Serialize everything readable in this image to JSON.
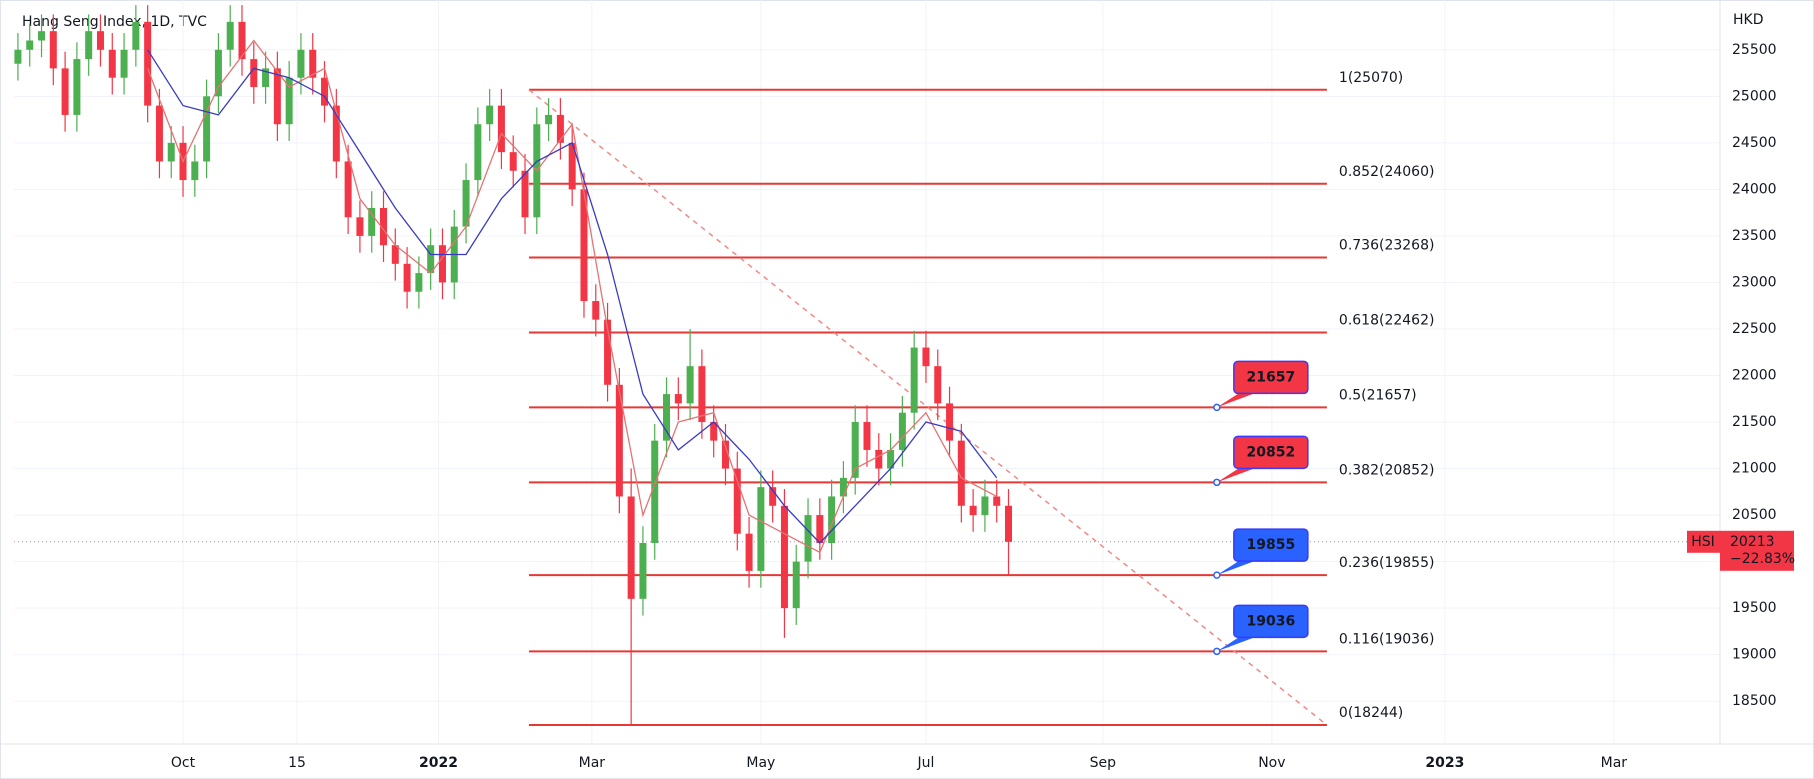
{
  "chart_data": {
    "type": "candlestick",
    "title": "Hang Seng Index, 1D, TVC",
    "currency": "HKD",
    "up_color": "#4caf50",
    "down_color": "#f23645",
    "grid": true,
    "xlim": [
      0,
      434
    ],
    "ylim": [
      18040,
      26035
    ],
    "xticks": [
      {
        "value": 43,
        "label": "Oct"
      },
      {
        "value": 72,
        "label": "15"
      },
      {
        "value": 108,
        "label": "2022"
      },
      {
        "value": 147,
        "label": "Mar"
      },
      {
        "value": 190,
        "label": "May"
      },
      {
        "value": 232,
        "label": "Jul"
      },
      {
        "value": 277,
        "label": "Sep"
      },
      {
        "value": 320,
        "label": "Nov"
      },
      {
        "value": 364,
        "label": "2023"
      },
      {
        "value": 407,
        "label": "Mar"
      }
    ],
    "yticks": [
      18500,
      19000,
      19500,
      20000,
      20500,
      21000,
      21500,
      22000,
      22500,
      23000,
      23500,
      24000,
      24500,
      25000,
      25500
    ],
    "x": [
      1,
      4,
      7,
      10,
      13,
      16,
      19,
      22,
      25,
      28,
      31,
      34,
      37,
      40,
      43,
      46,
      49,
      52,
      55,
      58,
      61,
      64,
      67,
      70,
      73,
      76,
      79,
      82,
      85,
      88,
      91,
      94,
      97,
      100,
      103,
      106,
      109,
      112,
      115,
      118,
      121,
      124,
      127,
      130,
      133,
      136,
      139,
      142,
      145,
      148,
      151,
      154,
      157,
      160,
      163,
      166,
      169,
      172,
      175,
      178,
      181,
      184,
      187,
      190,
      193,
      196,
      199,
      202,
      205,
      208,
      211,
      214,
      217,
      220,
      223,
      226,
      229,
      232,
      235,
      238,
      241,
      244,
      247,
      250,
      253
    ],
    "open": [
      25350,
      25500,
      25600,
      25700,
      25300,
      24800,
      25400,
      25700,
      25500,
      25200,
      25500,
      25800,
      24900,
      24300,
      24500,
      24100,
      24300,
      25000,
      25500,
      25800,
      25400,
      25100,
      25300,
      24700,
      25200,
      25500,
      25200,
      24900,
      24300,
      23700,
      23500,
      23800,
      23400,
      23200,
      22900,
      23100,
      23400,
      23000,
      23600,
      24100,
      24700,
      24900,
      24400,
      24200,
      23700,
      24700,
      24800,
      24500,
      24000,
      22800,
      22600,
      21900,
      20700,
      19600,
      20200,
      21300,
      21800,
      21700,
      22100,
      21500,
      21300,
      21000,
      20300,
      19900,
      20800,
      20600,
      19500,
      20000,
      20500,
      20200,
      20700,
      20900,
      21500,
      21200,
      21000,
      21200,
      21600,
      22300,
      22100,
      21700,
      21300,
      20600,
      20500,
      20700,
      20600
    ],
    "high": [
      25680,
      25780,
      25880,
      25880,
      25480,
      25580,
      25880,
      25880,
      25680,
      25680,
      25980,
      25980,
      25080,
      24680,
      24680,
      24480,
      25180,
      25680,
      25980,
      25980,
      25580,
      25480,
      25480,
      25380,
      25680,
      25680,
      25380,
      25080,
      24480,
      23880,
      23980,
      23980,
      23580,
      23380,
      23280,
      23580,
      23580,
      23780,
      24280,
      24880,
      25080,
      25080,
      24580,
      24380,
      24880,
      24980,
      24980,
      24680,
      24180,
      22980,
      22780,
      22080,
      21000,
      20380,
      21480,
      21980,
      21980,
      22500,
      22280,
      21680,
      21480,
      21180,
      20480,
      20980,
      20980,
      20780,
      20180,
      20680,
      20680,
      20880,
      21080,
      21680,
      21680,
      21380,
      21380,
      21780,
      22480,
      22480,
      22280,
      21880,
      21480,
      20780,
      20880,
      20880,
      20780
    ],
    "low": [
      25170,
      25320,
      25420,
      25120,
      24620,
      24620,
      25220,
      25320,
      25020,
      25020,
      25320,
      24720,
      24120,
      24120,
      23920,
      23920,
      24120,
      24820,
      25320,
      25220,
      24920,
      24920,
      24520,
      24520,
      25020,
      25020,
      24720,
      24120,
      23520,
      23320,
      23320,
      23220,
      23020,
      22720,
      22720,
      22920,
      22820,
      22820,
      23420,
      23920,
      24520,
      24220,
      24020,
      23520,
      23520,
      24520,
      24320,
      23820,
      22620,
      22420,
      21720,
      20520,
      18244,
      19420,
      20020,
      21120,
      21520,
      21520,
      21320,
      21120,
      20820,
      20120,
      19720,
      19720,
      20420,
      19180,
      19320,
      19820,
      20020,
      20020,
      20520,
      20720,
      21020,
      20820,
      20820,
      21020,
      21420,
      21920,
      21520,
      21120,
      20420,
      20320,
      20320,
      20420,
      19860
    ],
    "close": [
      25500,
      25600,
      25700,
      25300,
      24800,
      25400,
      25700,
      25500,
      25200,
      25500,
      25800,
      24900,
      24300,
      24500,
      24100,
      24300,
      25000,
      25500,
      25800,
      25400,
      25100,
      25300,
      24700,
      25200,
      25500,
      25200,
      24900,
      24300,
      23700,
      23500,
      23800,
      23400,
      23200,
      22900,
      23100,
      23400,
      23000,
      23600,
      24100,
      24700,
      24900,
      24400,
      24200,
      23700,
      24700,
      24800,
      24500,
      24000,
      22800,
      22600,
      21900,
      20700,
      19600,
      20200,
      21300,
      21800,
      21700,
      22100,
      21500,
      21300,
      21000,
      20300,
      19900,
      20800,
      20600,
      19500,
      20000,
      20500,
      20200,
      20700,
      20900,
      21500,
      21200,
      21000,
      21200,
      21600,
      22300,
      22100,
      21700,
      21300,
      20600,
      20500,
      20700,
      20600,
      20213
    ],
    "series": [
      {
        "color": "#e57373",
        "x": [
          34,
          43,
          52,
          61,
          70,
          79,
          88,
          97,
          106,
          115,
          124,
          133,
          142,
          151,
          160,
          169,
          178,
          187,
          196,
          205,
          214,
          223,
          232,
          241,
          250
        ],
        "values": [
          25300,
          24300,
          25100,
          25600,
          25100,
          25300,
          23900,
          23400,
          23100,
          23600,
          24600,
          24200,
          24700,
          22500,
          20500,
          21500,
          21600,
          20500,
          20300,
          20100,
          21000,
          21200,
          21600,
          20900,
          20700
        ]
      },
      {
        "color": "#3a3ac4",
        "x": [
          34,
          43,
          52,
          61,
          70,
          79,
          88,
          97,
          106,
          115,
          124,
          133,
          142,
          151,
          160,
          169,
          178,
          187,
          196,
          205,
          214,
          223,
          232,
          241,
          250
        ],
        "values": [
          25500,
          24900,
          24800,
          25300,
          25200,
          25000,
          24400,
          23800,
          23300,
          23300,
          23900,
          24300,
          24500,
          23300,
          21800,
          21200,
          21500,
          21100,
          20600,
          20200,
          20600,
          21000,
          21500,
          21400,
          20900
        ]
      }
    ],
    "fib": {
      "color": "#e53935",
      "x": [
        131,
        334
      ],
      "levels": [
        {
          "price": 25070,
          "label": "1(25070)"
        },
        {
          "price": 24060,
          "label": "0.852(24060)"
        },
        {
          "price": 23268,
          "label": "0.736(23268)"
        },
        {
          "price": 22462,
          "label": "0.618(22462)"
        },
        {
          "price": 21657,
          "label": "0.5(21657)"
        },
        {
          "price": 20852,
          "label": "0.382(20852)"
        },
        {
          "price": 19855,
          "label": "0.236(19855)"
        },
        {
          "price": 19036,
          "label": "0.116(19036)"
        },
        {
          "price": 18244,
          "label": "0(18244)"
        }
      ]
    },
    "trend_line": {
      "color": "#ef8a86",
      "x": [
        131,
        334
      ],
      "values": [
        25070,
        18244
      ]
    },
    "callouts": {
      "x": 306,
      "items": [
        {
          "value": 21657,
          "color": "#f23645"
        },
        {
          "value": 20852,
          "color": "#f23645"
        },
        {
          "value": 19855,
          "color": "#2962ff"
        },
        {
          "value": 19036,
          "color": "#2962ff"
        }
      ]
    },
    "last": {
      "symbol": "HSI",
      "value": 20213,
      "change": "−22.83%",
      "color": "#f23645"
    }
  }
}
